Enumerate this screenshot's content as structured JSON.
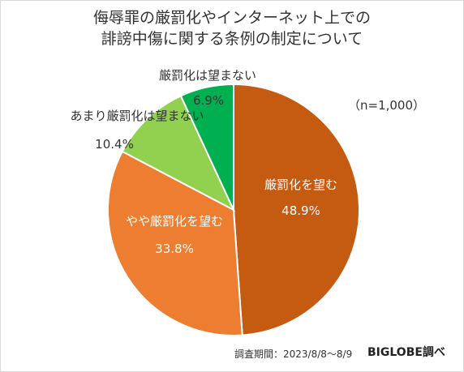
{
  "title_lines": [
    "侮辱罪の厳罰化やインターネット上での",
    "誹謗中傷に関する条例の制定について"
  ],
  "sample_note": "（n=1,000）",
  "footer": {
    "period": "調査期間：2023/8/8～8/9",
    "source": "BIGLOBE調べ"
  },
  "chart_data": {
    "type": "pie",
    "title": "侮辱罪の厳罰化やインターネット上での誹謗中傷に関する条例の制定について",
    "start": "12 o'clock, clockwise",
    "slices": [
      {
        "label": "厳罰化を望む",
        "value": 48.9,
        "value_label": "48.9%",
        "color": "#c55a11"
      },
      {
        "label": "やや厳罰化を望む",
        "value": 33.8,
        "value_label": "33.8%",
        "color": "#ed7d31"
      },
      {
        "label": "あまり厳罰化は望まない",
        "value": 10.4,
        "value_label": "10.4%",
        "color": "#92d050"
      },
      {
        "label": "厳罰化は望まない",
        "value": 6.9,
        "value_label": "6.9%",
        "color": "#00b050"
      }
    ]
  }
}
